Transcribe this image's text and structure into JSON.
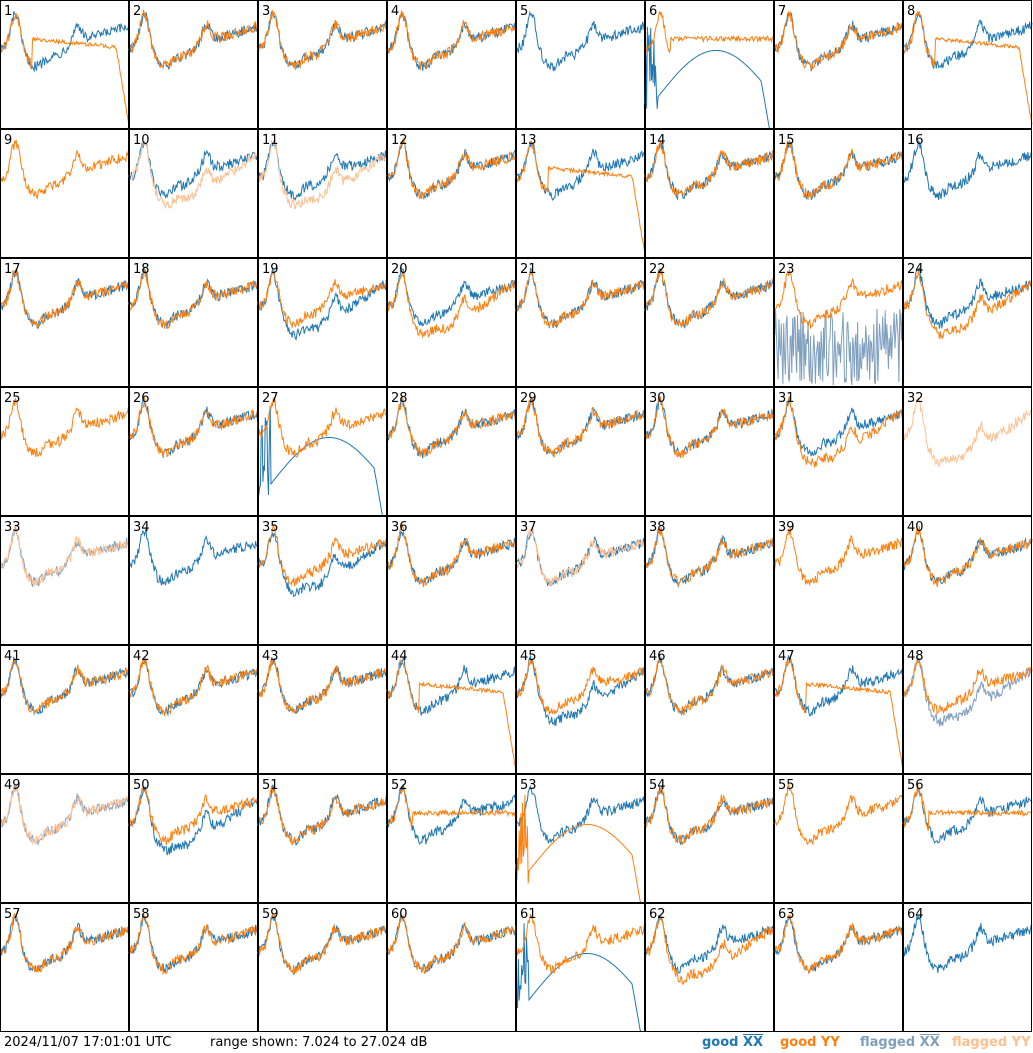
{
  "chart_data": {
    "type": "line",
    "grid": "8x8 small multiples",
    "panel_labels": [
      "1",
      "2",
      "3",
      "4",
      "5",
      "6",
      "7",
      "8",
      "9",
      "10",
      "11",
      "12",
      "13",
      "14",
      "15",
      "16",
      "17",
      "18",
      "19",
      "20",
      "21",
      "22",
      "23",
      "24",
      "25",
      "26",
      "27",
      "28",
      "29",
      "30",
      "31",
      "32",
      "33",
      "34",
      "35",
      "36",
      "37",
      "38",
      "39",
      "40",
      "41",
      "42",
      "43",
      "44",
      "45",
      "46",
      "47",
      "48",
      "49",
      "50",
      "51",
      "52",
      "53",
      "54",
      "55",
      "56",
      "57",
      "58",
      "59",
      "60",
      "61",
      "62",
      "63",
      "64"
    ],
    "ylim": [
      7.024,
      27.024
    ],
    "y_unit": "dB",
    "legend_placement": "bottom-right",
    "series_styles": [
      {
        "name": "good XX",
        "color": "#1f77b4"
      },
      {
        "name": "good YY",
        "color": "#ff7f0e"
      },
      {
        "name": "flagged XX",
        "color": "#7f9fbf"
      },
      {
        "name": "flagged YY",
        "color": "#ffbf8f"
      }
    ],
    "panels": [
      {
        "xx": "good",
        "yy": "good",
        "x_shape": "normal",
        "y_shape": "dropoff"
      },
      {
        "xx": "good",
        "yy": "good",
        "x_shape": "normal",
        "y_shape": "normal"
      },
      {
        "xx": "good",
        "yy": "good",
        "x_shape": "normal",
        "y_shape": "normal"
      },
      {
        "xx": "good",
        "yy": "good",
        "x_shape": "normal",
        "y_shape": "normal"
      },
      {
        "xx": "good",
        "yy": "good",
        "x_shape": "normal",
        "y_shape": "absent"
      },
      {
        "xx": "good",
        "yy": "good",
        "x_shape": "dipdrop",
        "y_shape": "flat"
      },
      {
        "xx": "good",
        "yy": "good",
        "x_shape": "normal",
        "y_shape": "normal"
      },
      {
        "xx": "good",
        "yy": "good",
        "x_shape": "normal",
        "y_shape": "dropoff"
      },
      {
        "xx": "flagged",
        "yy": "good",
        "x_shape": "absent",
        "y_shape": "normal"
      },
      {
        "xx": "good",
        "yy": "flagged",
        "x_shape": "normal",
        "y_shape": "low"
      },
      {
        "xx": "good",
        "yy": "flagged",
        "x_shape": "normal",
        "y_shape": "low"
      },
      {
        "xx": "good",
        "yy": "good",
        "x_shape": "normal",
        "y_shape": "normal"
      },
      {
        "xx": "good",
        "yy": "good",
        "x_shape": "normal",
        "y_shape": "dropoff"
      },
      {
        "xx": "good",
        "yy": "good",
        "x_shape": "normal",
        "y_shape": "normal"
      },
      {
        "xx": "good",
        "yy": "good",
        "x_shape": "normal",
        "y_shape": "normal"
      },
      {
        "xx": "good",
        "yy": "good",
        "x_shape": "normal",
        "y_shape": "absent"
      },
      {
        "xx": "good",
        "yy": "good",
        "x_shape": "normal",
        "y_shape": "normal"
      },
      {
        "xx": "good",
        "yy": "good",
        "x_shape": "normal",
        "y_shape": "normal"
      },
      {
        "xx": "good",
        "yy": "good",
        "x_shape": "low",
        "y_shape": "normal"
      },
      {
        "xx": "good",
        "yy": "good",
        "x_shape": "normal",
        "y_shape": "low"
      },
      {
        "xx": "good",
        "yy": "good",
        "x_shape": "normal",
        "y_shape": "normal"
      },
      {
        "xx": "good",
        "yy": "good",
        "x_shape": "normal",
        "y_shape": "normal"
      },
      {
        "xx": "flagged",
        "yy": "good",
        "x_shape": "noisy",
        "y_shape": "normal"
      },
      {
        "xx": "good",
        "yy": "good",
        "x_shape": "normal",
        "y_shape": "low"
      },
      {
        "xx": "good",
        "yy": "good",
        "x_shape": "absent",
        "y_shape": "normal"
      },
      {
        "xx": "good",
        "yy": "good",
        "x_shape": "normal",
        "y_shape": "normal"
      },
      {
        "xx": "good",
        "yy": "good",
        "x_shape": "dipdrop",
        "y_shape": "normal"
      },
      {
        "xx": "good",
        "yy": "good",
        "x_shape": "normal",
        "y_shape": "normal"
      },
      {
        "xx": "good",
        "yy": "good",
        "x_shape": "normal",
        "y_shape": "normal"
      },
      {
        "xx": "good",
        "yy": "good",
        "x_shape": "normal",
        "y_shape": "normal"
      },
      {
        "xx": "good",
        "yy": "good",
        "x_shape": "normal",
        "y_shape": "low"
      },
      {
        "xx": "good",
        "yy": "flagged",
        "x_shape": "absent",
        "y_shape": "low"
      },
      {
        "xx": "flagged",
        "yy": "flagged",
        "x_shape": "normal",
        "y_shape": "normal"
      },
      {
        "xx": "good",
        "yy": "good",
        "x_shape": "normal",
        "y_shape": "absent"
      },
      {
        "xx": "good",
        "yy": "good",
        "x_shape": "low",
        "y_shape": "normal"
      },
      {
        "xx": "good",
        "yy": "good",
        "x_shape": "normal",
        "y_shape": "normal"
      },
      {
        "xx": "good",
        "yy": "flagged",
        "x_shape": "normal",
        "y_shape": "normal"
      },
      {
        "xx": "good",
        "yy": "good",
        "x_shape": "normal",
        "y_shape": "normal"
      },
      {
        "xx": "good",
        "yy": "good",
        "x_shape": "absent",
        "y_shape": "normal"
      },
      {
        "xx": "good",
        "yy": "good",
        "x_shape": "normal",
        "y_shape": "normal"
      },
      {
        "xx": "good",
        "yy": "good",
        "x_shape": "normal",
        "y_shape": "normal"
      },
      {
        "xx": "good",
        "yy": "good",
        "x_shape": "normal",
        "y_shape": "normal"
      },
      {
        "xx": "good",
        "yy": "good",
        "x_shape": "normal",
        "y_shape": "normal"
      },
      {
        "xx": "good",
        "yy": "good",
        "x_shape": "normal",
        "y_shape": "dropoff"
      },
      {
        "xx": "good",
        "yy": "good",
        "x_shape": "low",
        "y_shape": "normal"
      },
      {
        "xx": "good",
        "yy": "good",
        "x_shape": "normal",
        "y_shape": "normal"
      },
      {
        "xx": "good",
        "yy": "good",
        "x_shape": "normal",
        "y_shape": "dropoff"
      },
      {
        "xx": "flagged",
        "yy": "good",
        "x_shape": "low",
        "y_shape": "normal"
      },
      {
        "xx": "flagged",
        "yy": "flagged",
        "x_shape": "normal",
        "y_shape": "normal"
      },
      {
        "xx": "good",
        "yy": "good",
        "x_shape": "low",
        "y_shape": "normal"
      },
      {
        "xx": "good",
        "yy": "good",
        "x_shape": "normal",
        "y_shape": "normal"
      },
      {
        "xx": "good",
        "yy": "good",
        "x_shape": "normal",
        "y_shape": "flat"
      },
      {
        "xx": "good",
        "yy": "good",
        "x_shape": "normal",
        "y_shape": "dipdrop"
      },
      {
        "xx": "good",
        "yy": "good",
        "x_shape": "normal",
        "y_shape": "normal"
      },
      {
        "xx": "good",
        "yy": "good",
        "x_shape": "absent",
        "y_shape": "normal"
      },
      {
        "xx": "good",
        "yy": "good",
        "x_shape": "normal",
        "y_shape": "flat"
      },
      {
        "xx": "good",
        "yy": "good",
        "x_shape": "normal",
        "y_shape": "normal"
      },
      {
        "xx": "good",
        "yy": "good",
        "x_shape": "normal",
        "y_shape": "normal"
      },
      {
        "xx": "good",
        "yy": "good",
        "x_shape": "normal",
        "y_shape": "normal"
      },
      {
        "xx": "good",
        "yy": "good",
        "x_shape": "normal",
        "y_shape": "normal"
      },
      {
        "xx": "good",
        "yy": "good",
        "x_shape": "dipdrop",
        "y_shape": "normal"
      },
      {
        "xx": "good",
        "yy": "good",
        "x_shape": "normal",
        "y_shape": "low"
      },
      {
        "xx": "good",
        "yy": "good",
        "x_shape": "normal",
        "y_shape": "normal"
      },
      {
        "xx": "good",
        "yy": "good",
        "x_shape": "normal",
        "y_shape": "absent"
      }
    ]
  },
  "footer": {
    "timestamp": "2024/11/07 17:01:01 UTC",
    "range_label": "range shown:",
    "range_value": "7.024 to 27.024 dB",
    "legend_good_prefix": "good ",
    "legend_flagged_prefix": "flagged ",
    "legend_xx": "XX",
    "legend_yy": "YY"
  }
}
